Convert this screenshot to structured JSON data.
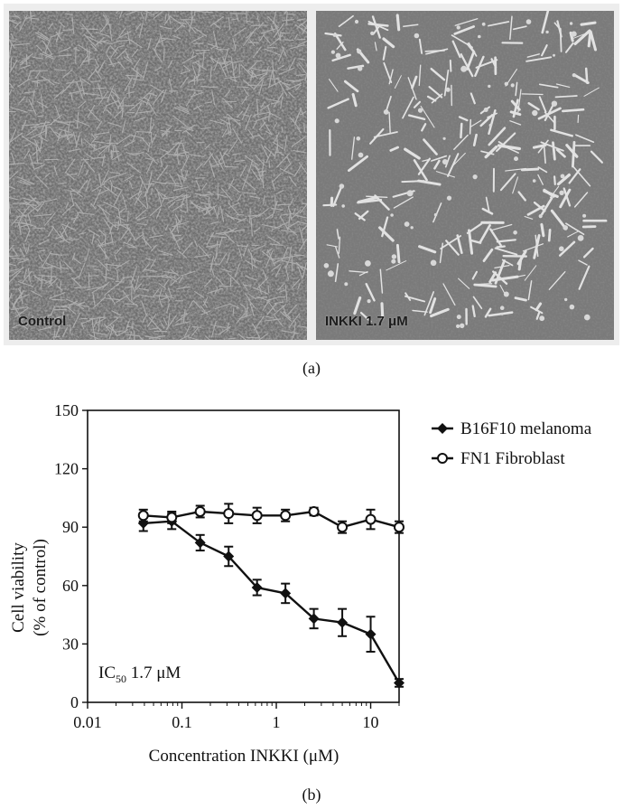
{
  "panel_a": {
    "images": [
      {
        "label": "Control"
      },
      {
        "label": "INKKI 1.7 μM"
      }
    ],
    "caption": "(a)"
  },
  "panel_b": {
    "caption": "(b)",
    "annotation_main": "IC",
    "annotation_sub": "50",
    "annotation_value": " 1.7 μM"
  },
  "chart_data": {
    "type": "line",
    "xlabel": "Concentration INKKI (μM)",
    "ylabel_line1": "Cell viability",
    "ylabel_line2": "(% of control)",
    "xscale": "log",
    "xlim": [
      0.01,
      20
    ],
    "ylim": [
      0,
      150
    ],
    "x_ticks": [
      "0.01",
      "0.1",
      "1",
      "10"
    ],
    "y_ticks": [
      "0",
      "30",
      "60",
      "90",
      "120",
      "150"
    ],
    "legend_position": "right",
    "x": [
      0.039,
      0.078,
      0.156,
      0.3125,
      0.625,
      1.25,
      2.5,
      5,
      10,
      20
    ],
    "series": [
      {
        "name": "B16F10 melanoma",
        "marker": "filled-diamond",
        "values": [
          92,
          93,
          82,
          75,
          59,
          56,
          43,
          41,
          35,
          10
        ],
        "errors": [
          4,
          4,
          4,
          5,
          4,
          5,
          5,
          7,
          9,
          2
        ]
      },
      {
        "name": "FN1 Fibroblast",
        "marker": "open-circle",
        "values": [
          96,
          95,
          98,
          97,
          96,
          96,
          98,
          90,
          94,
          90
        ],
        "errors": [
          3,
          3,
          3,
          5,
          4,
          3,
          2,
          3,
          5,
          3
        ]
      }
    ]
  }
}
